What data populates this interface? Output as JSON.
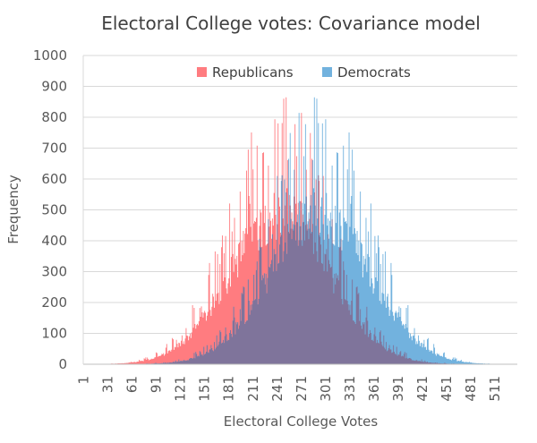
{
  "chart_data": {
    "type": "area",
    "title": "Electoral College votes: Covariance model",
    "xlabel": "Electoral College Votes",
    "ylabel": "Frequency",
    "ylim": [
      0,
      1000
    ],
    "yticks": [
      0,
      100,
      200,
      300,
      400,
      500,
      600,
      700,
      800,
      900,
      1000
    ],
    "xlim": [
      1,
      538
    ],
    "xticks": [
      1,
      31,
      61,
      91,
      121,
      151,
      181,
      211,
      241,
      271,
      301,
      331,
      361,
      391,
      421,
      451,
      481,
      511
    ],
    "grid": true,
    "legend": {
      "placement": "top-center",
      "entries": [
        "Republicans",
        "Democrats"
      ]
    },
    "series": [
      {
        "name": "Republicans",
        "color": "#ff7c80",
        "mean": 245,
        "sd": 62,
        "peak_base": 500,
        "spike_max": 880
      },
      {
        "name": "Democrats",
        "color": "#72b2de",
        "mean": 293,
        "sd": 62,
        "peak_base": 500,
        "spike_max": 880
      }
    ],
    "overlap_color": "#7f749b",
    "note": "Histogram of simulated outcomes; Democrats(x) = Republicans(538 - x). Values are approximate: smooth envelope peaking near 500 with frequent spikes up to ~880."
  }
}
